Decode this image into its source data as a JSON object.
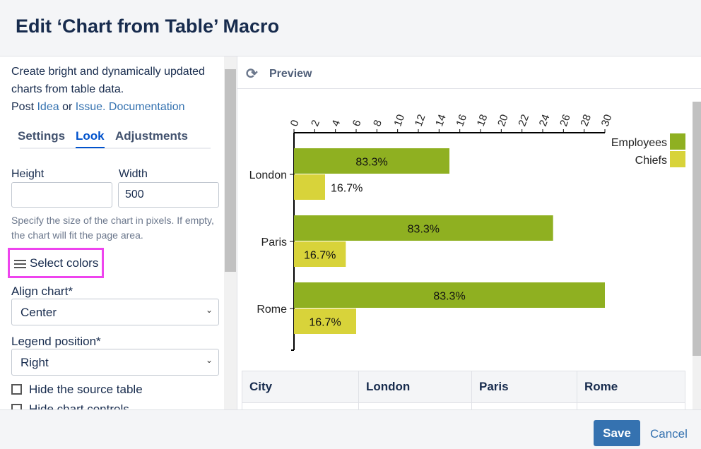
{
  "dialog": {
    "title": "Edit ‘Chart from Table’ Macro"
  },
  "sidebar": {
    "intro_line1": "Create bright and dynamically updated charts from table data.",
    "post": "Post",
    "idea": "Idea",
    "or": "or",
    "issue": "Issue.",
    "documentation": "Documentation",
    "tabs": [
      {
        "label": "Settings"
      },
      {
        "label": "Look"
      },
      {
        "label": "Adjustments"
      }
    ],
    "height_label": "Height",
    "height_value": "",
    "width_label": "Width",
    "width_value": "500",
    "size_hint": "Specify the size of the chart in pixels. If empty, the chart will fit the page area.",
    "select_colors": "Select colors",
    "align_label": "Align chart*",
    "align_value": "Center",
    "legend_label": "Legend position*",
    "legend_value": "Right",
    "hide_table": "Hide the source table",
    "hide_controls": "Hide chart controls"
  },
  "preview": {
    "title": "Preview"
  },
  "table": {
    "headers": [
      "City",
      "London",
      "Paris",
      "Rome"
    ]
  },
  "footer": {
    "save": "Save",
    "cancel": "Cancel"
  },
  "chart_data": {
    "type": "bar",
    "orientation": "horizontal",
    "categories": [
      "London",
      "Paris",
      "Rome"
    ],
    "series": [
      {
        "name": "Employees",
        "values": [
          15,
          25,
          30
        ],
        "labels": [
          "83.3%",
          "83.3%",
          "83.3%"
        ],
        "color": "#8fb021"
      },
      {
        "name": "Chiefs",
        "values": [
          3,
          5,
          6
        ],
        "labels": [
          "16.7%",
          "16.7%",
          "16.7%"
        ],
        "color": "#d8d33a"
      }
    ],
    "xlim": [
      0,
      30
    ],
    "xticks": [
      0,
      2,
      4,
      6,
      8,
      10,
      12,
      14,
      16,
      18,
      20,
      22,
      24,
      26,
      28,
      30
    ],
    "legend": "top-right"
  }
}
